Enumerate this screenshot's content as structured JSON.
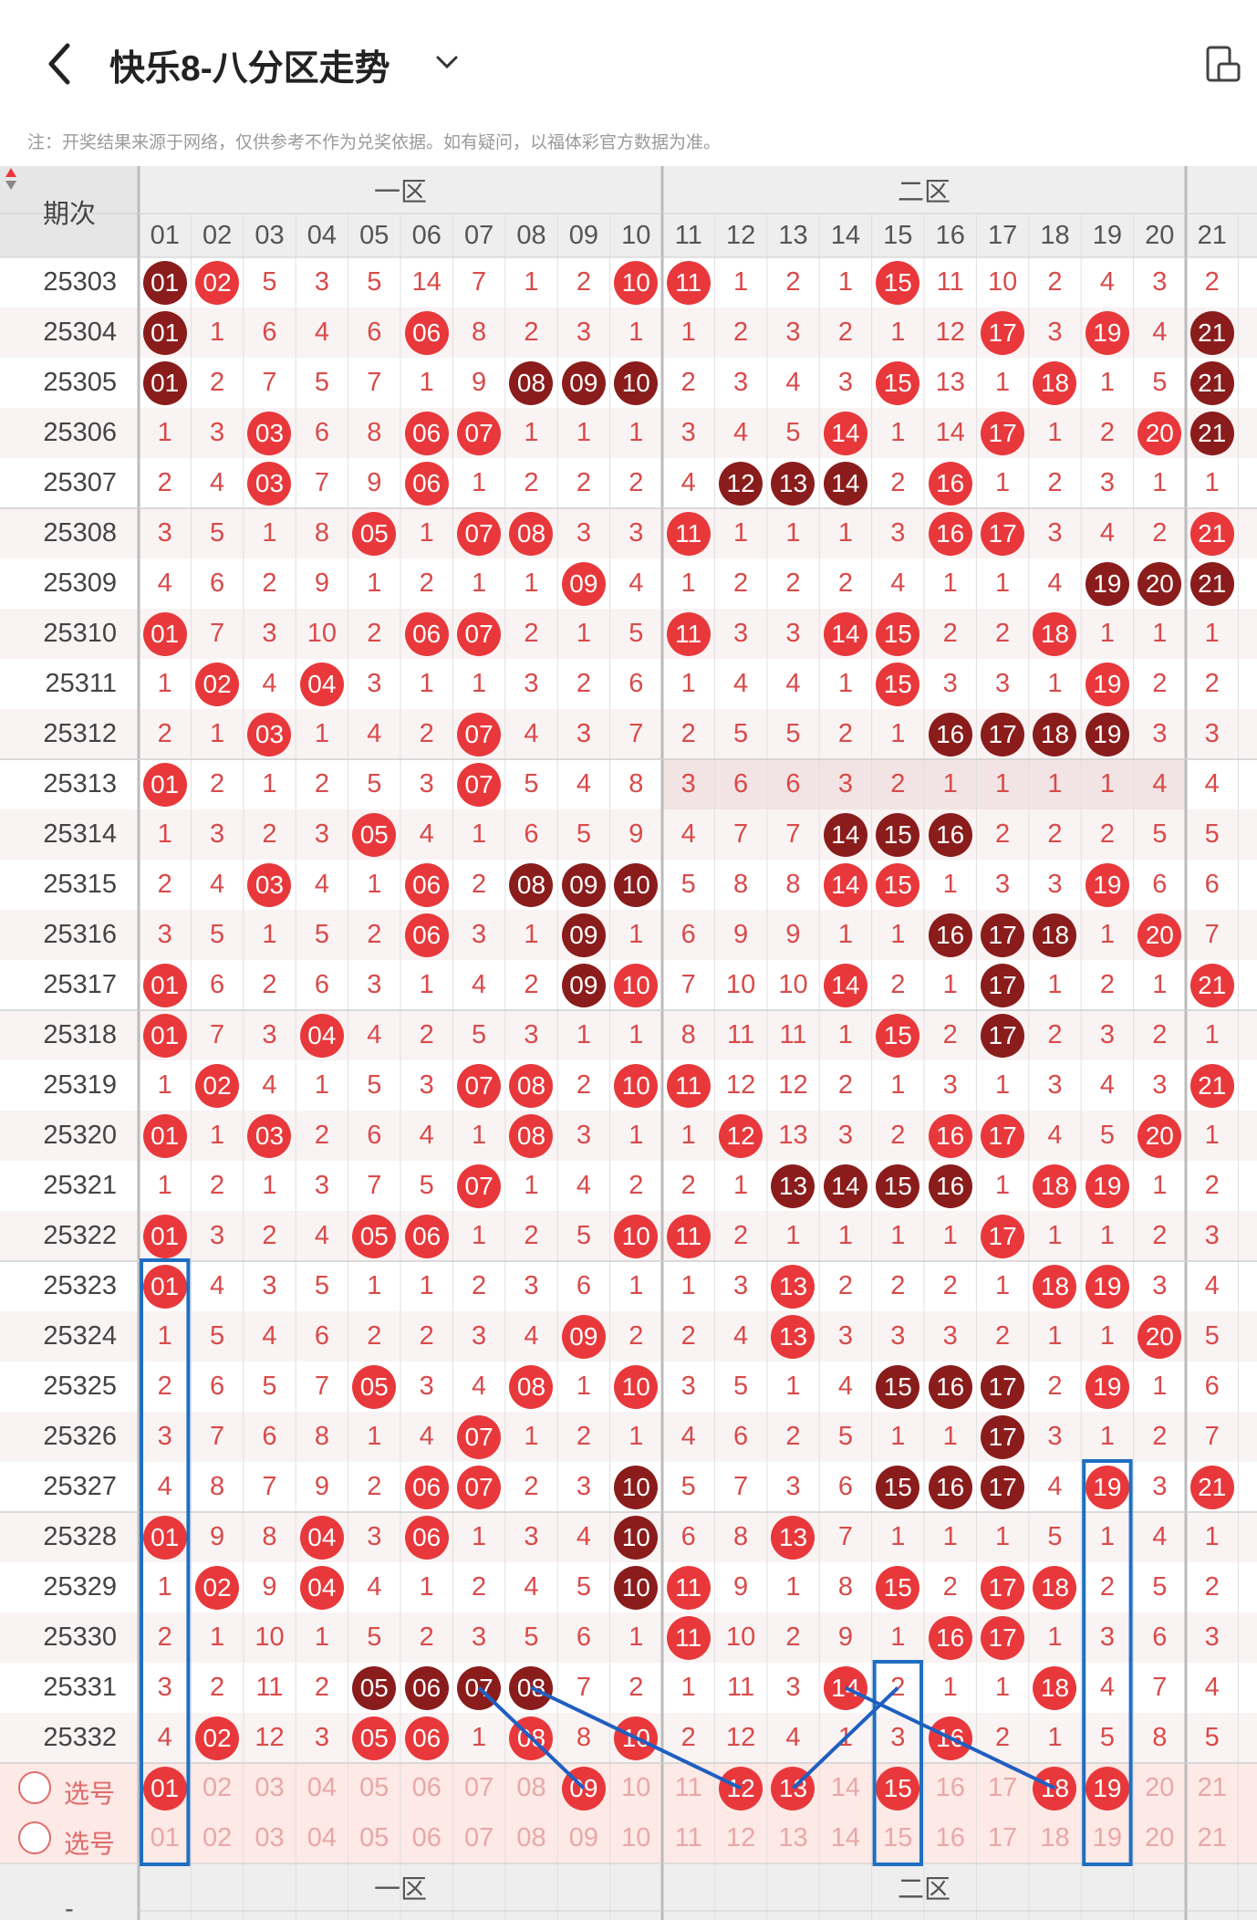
{
  "header": {
    "title": "快乐8-八分区走势",
    "note": "注：开奖结果来源于网络，仅供参考不作为兑奖依据。如有疑问，以福体彩官方数据为准。"
  },
  "table": {
    "issue_header": "期次",
    "zones": [
      "一区",
      "二区"
    ],
    "columns": [
      "01",
      "02",
      "03",
      "04",
      "05",
      "06",
      "07",
      "08",
      "09",
      "10",
      "11",
      "12",
      "13",
      "14",
      "15",
      "16",
      "17",
      "18",
      "19",
      "20",
      "21"
    ],
    "rows": [
      {
        "issue": "25303",
        "cells": [
          [
            "01",
            "d"
          ],
          [
            "02",
            "r"
          ],
          "5",
          "3",
          "5",
          "14",
          "7",
          "1",
          "2",
          [
            "10",
            "r"
          ],
          [
            "11",
            "r"
          ],
          "1",
          "2",
          "1",
          [
            "15",
            "r"
          ],
          "11",
          "10",
          "2",
          "4",
          "3",
          "2"
        ]
      },
      {
        "issue": "25304",
        "cells": [
          [
            "01",
            "d"
          ],
          "1",
          "6",
          "4",
          "6",
          [
            "06",
            "r"
          ],
          "8",
          "2",
          "3",
          "1",
          "1",
          "2",
          "3",
          "2",
          "1",
          "12",
          [
            "17",
            "r"
          ],
          "3",
          [
            "19",
            "r"
          ],
          "4",
          [
            "21",
            "d"
          ]
        ]
      },
      {
        "issue": "25305",
        "cells": [
          [
            "01",
            "d"
          ],
          "2",
          "7",
          "5",
          "7",
          "1",
          "9",
          [
            "08",
            "d"
          ],
          [
            "09",
            "d"
          ],
          [
            "10",
            "d"
          ],
          "2",
          "3",
          "4",
          "3",
          [
            "15",
            "r"
          ],
          "13",
          "1",
          [
            "18",
            "r"
          ],
          "1",
          "5",
          [
            "21",
            "d"
          ]
        ]
      },
      {
        "issue": "25306",
        "cells": [
          "1",
          "3",
          [
            "03",
            "r"
          ],
          "6",
          "8",
          [
            "06",
            "r"
          ],
          [
            "07",
            "r"
          ],
          "1",
          "1",
          "1",
          "3",
          "4",
          "5",
          [
            "14",
            "r"
          ],
          "1",
          "14",
          [
            "17",
            "r"
          ],
          "1",
          "2",
          [
            "20",
            "r"
          ],
          [
            "21",
            "d"
          ]
        ]
      },
      {
        "issue": "25307",
        "cells": [
          "2",
          "4",
          [
            "03",
            "r"
          ],
          "7",
          "9",
          [
            "06",
            "r"
          ],
          "1",
          "2",
          "2",
          "2",
          "4",
          [
            "12",
            "d"
          ],
          [
            "13",
            "d"
          ],
          [
            "14",
            "d"
          ],
          "2",
          [
            "16",
            "r"
          ],
          "1",
          "2",
          "3",
          "1",
          "1"
        ]
      },
      {
        "issue": "25308",
        "cells": [
          "3",
          "5",
          "1",
          "8",
          [
            "05",
            "r"
          ],
          "1",
          [
            "07",
            "r"
          ],
          [
            "08",
            "r"
          ],
          "3",
          "3",
          [
            "11",
            "r"
          ],
          "1",
          "1",
          "1",
          "3",
          [
            "16",
            "r"
          ],
          [
            "17",
            "r"
          ],
          "3",
          "4",
          "2",
          [
            "21",
            "r"
          ]
        ]
      },
      {
        "issue": "25309",
        "cells": [
          "4",
          "6",
          "2",
          "9",
          "1",
          "2",
          "1",
          "1",
          [
            "09",
            "r"
          ],
          "4",
          "1",
          "2",
          "2",
          "2",
          "4",
          "1",
          "1",
          "4",
          [
            "19",
            "d"
          ],
          [
            "20",
            "d"
          ],
          [
            "21",
            "d"
          ]
        ]
      },
      {
        "issue": "25310",
        "cells": [
          [
            "01",
            "r"
          ],
          "7",
          "3",
          "10",
          "2",
          [
            "06",
            "r"
          ],
          [
            "07",
            "r"
          ],
          "2",
          "1",
          "5",
          [
            "11",
            "r"
          ],
          "3",
          "3",
          [
            "14",
            "r"
          ],
          [
            "15",
            "r"
          ],
          "2",
          "2",
          [
            "18",
            "r"
          ],
          "1",
          "1",
          "1"
        ]
      },
      {
        "issue": "25311",
        "cells": [
          "1",
          [
            "02",
            "r"
          ],
          "4",
          [
            "04",
            "r"
          ],
          "3",
          "1",
          "1",
          "3",
          "2",
          "6",
          "1",
          "4",
          "4",
          "1",
          [
            "15",
            "r"
          ],
          "3",
          "3",
          "1",
          [
            "19",
            "r"
          ],
          "2",
          "2"
        ]
      },
      {
        "issue": "25312",
        "cells": [
          "2",
          "1",
          [
            "03",
            "r"
          ],
          "1",
          "4",
          "2",
          [
            "07",
            "r"
          ],
          "4",
          "3",
          "7",
          "2",
          "5",
          "5",
          "2",
          "1",
          [
            "16",
            "d"
          ],
          [
            "17",
            "d"
          ],
          [
            "18",
            "d"
          ],
          [
            "19",
            "d"
          ],
          "3",
          "3"
        ]
      },
      {
        "issue": "25313",
        "cells": [
          [
            "01",
            "r"
          ],
          "2",
          "1",
          "2",
          "5",
          "3",
          [
            "07",
            "r"
          ],
          "5",
          "4",
          "8",
          "3",
          "6",
          "6",
          "3",
          "2",
          "1",
          "1",
          "1",
          "1",
          "4",
          "4"
        ]
      },
      {
        "issue": "25314",
        "cells": [
          "1",
          "3",
          "2",
          "3",
          [
            "05",
            "r"
          ],
          "4",
          "1",
          "6",
          "5",
          "9",
          "4",
          "7",
          "7",
          [
            "14",
            "d"
          ],
          [
            "15",
            "d"
          ],
          [
            "16",
            "d"
          ],
          "2",
          "2",
          "2",
          "5",
          "5"
        ]
      },
      {
        "issue": "25315",
        "cells": [
          "2",
          "4",
          [
            "03",
            "r"
          ],
          "4",
          "1",
          [
            "06",
            "r"
          ],
          "2",
          [
            "08",
            "d"
          ],
          [
            "09",
            "d"
          ],
          [
            "10",
            "d"
          ],
          "5",
          "8",
          "8",
          [
            "14",
            "r"
          ],
          [
            "15",
            "r"
          ],
          "1",
          "3",
          "3",
          [
            "19",
            "r"
          ],
          "6",
          "6"
        ]
      },
      {
        "issue": "25316",
        "cells": [
          "3",
          "5",
          "1",
          "5",
          "2",
          [
            "06",
            "r"
          ],
          "3",
          "1",
          [
            "09",
            "d"
          ],
          "1",
          "6",
          "9",
          "9",
          "1",
          "1",
          [
            "16",
            "d"
          ],
          [
            "17",
            "d"
          ],
          [
            "18",
            "d"
          ],
          "1",
          [
            "20",
            "r"
          ],
          "7"
        ]
      },
      {
        "issue": "25317",
        "cells": [
          [
            "01",
            "r"
          ],
          "6",
          "2",
          "6",
          "3",
          "1",
          "4",
          "2",
          [
            "09",
            "d"
          ],
          [
            "10",
            "r"
          ],
          "7",
          "10",
          "10",
          [
            "14",
            "r"
          ],
          "2",
          "1",
          [
            "17",
            "d"
          ],
          "1",
          "2",
          "1",
          [
            "21",
            "r"
          ]
        ]
      },
      {
        "issue": "25318",
        "cells": [
          [
            "01",
            "r"
          ],
          "7",
          "3",
          [
            "04",
            "r"
          ],
          "4",
          "2",
          "5",
          "3",
          "1",
          "1",
          "8",
          "11",
          "11",
          "1",
          [
            "15",
            "r"
          ],
          "2",
          [
            "17",
            "d"
          ],
          "2",
          "3",
          "2",
          "1"
        ]
      },
      {
        "issue": "25319",
        "cells": [
          "1",
          [
            "02",
            "r"
          ],
          "4",
          "1",
          "5",
          "3",
          [
            "07",
            "r"
          ],
          [
            "08",
            "r"
          ],
          "2",
          [
            "10",
            "r"
          ],
          [
            "11",
            "r"
          ],
          "12",
          "12",
          "2",
          "1",
          "3",
          "1",
          "3",
          "4",
          "3",
          [
            "21",
            "r"
          ]
        ]
      },
      {
        "issue": "25320",
        "cells": [
          [
            "01",
            "r"
          ],
          "1",
          [
            "03",
            "r"
          ],
          "2",
          "6",
          "4",
          "1",
          [
            "08",
            "r"
          ],
          "3",
          "1",
          "1",
          [
            "12",
            "r"
          ],
          "13",
          "3",
          "2",
          [
            "16",
            "r"
          ],
          [
            "17",
            "r"
          ],
          "4",
          "5",
          [
            "20",
            "r"
          ],
          "1"
        ]
      },
      {
        "issue": "25321",
        "cells": [
          "1",
          "2",
          "1",
          "3",
          "7",
          "5",
          [
            "07",
            "r"
          ],
          "1",
          "4",
          "2",
          "2",
          "1",
          [
            "13",
            "d"
          ],
          [
            "14",
            "d"
          ],
          [
            "15",
            "d"
          ],
          [
            "16",
            "d"
          ],
          "1",
          [
            "18",
            "r"
          ],
          [
            "19",
            "r"
          ],
          "1",
          "2"
        ]
      },
      {
        "issue": "25322",
        "cells": [
          [
            "01",
            "r"
          ],
          "3",
          "2",
          "4",
          [
            "05",
            "r"
          ],
          [
            "06",
            "r"
          ],
          "1",
          "2",
          "5",
          [
            "10",
            "r"
          ],
          [
            "11",
            "r"
          ],
          "2",
          "1",
          "1",
          "1",
          "1",
          [
            "17",
            "r"
          ],
          "1",
          "1",
          "2",
          "3"
        ]
      },
      {
        "issue": "25323",
        "cells": [
          [
            "01",
            "r"
          ],
          "4",
          "3",
          "5",
          "1",
          "1",
          "2",
          "3",
          "6",
          "1",
          "1",
          "3",
          [
            "13",
            "r"
          ],
          "2",
          "2",
          "2",
          "1",
          [
            "18",
            "r"
          ],
          [
            "19",
            "r"
          ],
          "3",
          "4"
        ]
      },
      {
        "issue": "25324",
        "cells": [
          "1",
          "5",
          "4",
          "6",
          "2",
          "2",
          "3",
          "4",
          [
            "09",
            "r"
          ],
          "2",
          "2",
          "4",
          [
            "13",
            "r"
          ],
          "3",
          "3",
          "3",
          "2",
          "1",
          "1",
          [
            "20",
            "r"
          ],
          "5"
        ]
      },
      {
        "issue": "25325",
        "cells": [
          "2",
          "6",
          "5",
          "7",
          [
            "05",
            "r"
          ],
          "3",
          "4",
          [
            "08",
            "r"
          ],
          "1",
          [
            "10",
            "r"
          ],
          "3",
          "5",
          "1",
          "4",
          [
            "15",
            "d"
          ],
          [
            "16",
            "d"
          ],
          [
            "17",
            "d"
          ],
          "2",
          [
            "19",
            "r"
          ],
          "1",
          "6"
        ]
      },
      {
        "issue": "25326",
        "cells": [
          "3",
          "7",
          "6",
          "8",
          "1",
          "4",
          [
            "07",
            "r"
          ],
          "1",
          "2",
          "1",
          "4",
          "6",
          "2",
          "5",
          "1",
          "1",
          [
            "17",
            "d"
          ],
          "3",
          "1",
          "2",
          "7"
        ]
      },
      {
        "issue": "25327",
        "cells": [
          "4",
          "8",
          "7",
          "9",
          "2",
          [
            "06",
            "r"
          ],
          [
            "07",
            "r"
          ],
          "2",
          "3",
          [
            "10",
            "d"
          ],
          "5",
          "7",
          "3",
          "6",
          [
            "15",
            "d"
          ],
          [
            "16",
            "d"
          ],
          [
            "17",
            "d"
          ],
          "4",
          [
            "19",
            "r"
          ],
          "3",
          [
            "21",
            "r"
          ]
        ]
      },
      {
        "issue": "25328",
        "cells": [
          [
            "01",
            "r"
          ],
          "9",
          "8",
          [
            "04",
            "r"
          ],
          "3",
          [
            "06",
            "r"
          ],
          "1",
          "3",
          "4",
          [
            "10",
            "d"
          ],
          "6",
          "8",
          [
            "13",
            "r"
          ],
          "7",
          "1",
          "1",
          "1",
          "5",
          "1",
          "4",
          "1"
        ]
      },
      {
        "issue": "25329",
        "cells": [
          "1",
          [
            "02",
            "r"
          ],
          "9",
          [
            "04",
            "r"
          ],
          "4",
          "1",
          "2",
          "4",
          "5",
          [
            "10",
            "d"
          ],
          [
            "11",
            "r"
          ],
          "9",
          "1",
          "8",
          [
            "15",
            "r"
          ],
          "2",
          [
            "17",
            "r"
          ],
          [
            "18",
            "r"
          ],
          "2",
          "5",
          "2"
        ]
      },
      {
        "issue": "25330",
        "cells": [
          "2",
          "1",
          "10",
          "1",
          "5",
          "2",
          "3",
          "5",
          "6",
          "1",
          [
            "11",
            "r"
          ],
          "10",
          "2",
          "9",
          "1",
          [
            "16",
            "r"
          ],
          [
            "17",
            "r"
          ],
          "1",
          "3",
          "6",
          "3"
        ]
      },
      {
        "issue": "25331",
        "cells": [
          "3",
          "2",
          "11",
          "2",
          [
            "05",
            "d"
          ],
          [
            "06",
            "d"
          ],
          [
            "07",
            "d"
          ],
          [
            "08",
            "d"
          ],
          "7",
          "2",
          "1",
          "11",
          "3",
          [
            "14",
            "r"
          ],
          "2",
          "1",
          "1",
          [
            "18",
            "r"
          ],
          "4",
          "7",
          "4"
        ]
      },
      {
        "issue": "25332",
        "cells": [
          "4",
          [
            "02",
            "r"
          ],
          "12",
          "3",
          [
            "05",
            "r"
          ],
          [
            "06",
            "r"
          ],
          "1",
          [
            "08",
            "r"
          ],
          "8",
          [
            "10",
            "r"
          ],
          "2",
          "12",
          "4",
          "1",
          "3",
          [
            "16",
            "r"
          ],
          "2",
          "1",
          "5",
          "8",
          "5"
        ]
      }
    ],
    "pick_rows": [
      {
        "label": "选号",
        "selected": [
          "01",
          "09",
          "12",
          "13",
          "15",
          "18",
          "19"
        ]
      },
      {
        "label": "选号",
        "selected": []
      }
    ],
    "footer_zones": [
      "一区",
      "二区"
    ],
    "footer_issue": "-"
  },
  "colors": {
    "red": "#e8383b",
    "dark": "#8a1c1c",
    "grid": "#d8d8d8",
    "box": "#1f6fc1",
    "line": "#1f5fc0"
  }
}
